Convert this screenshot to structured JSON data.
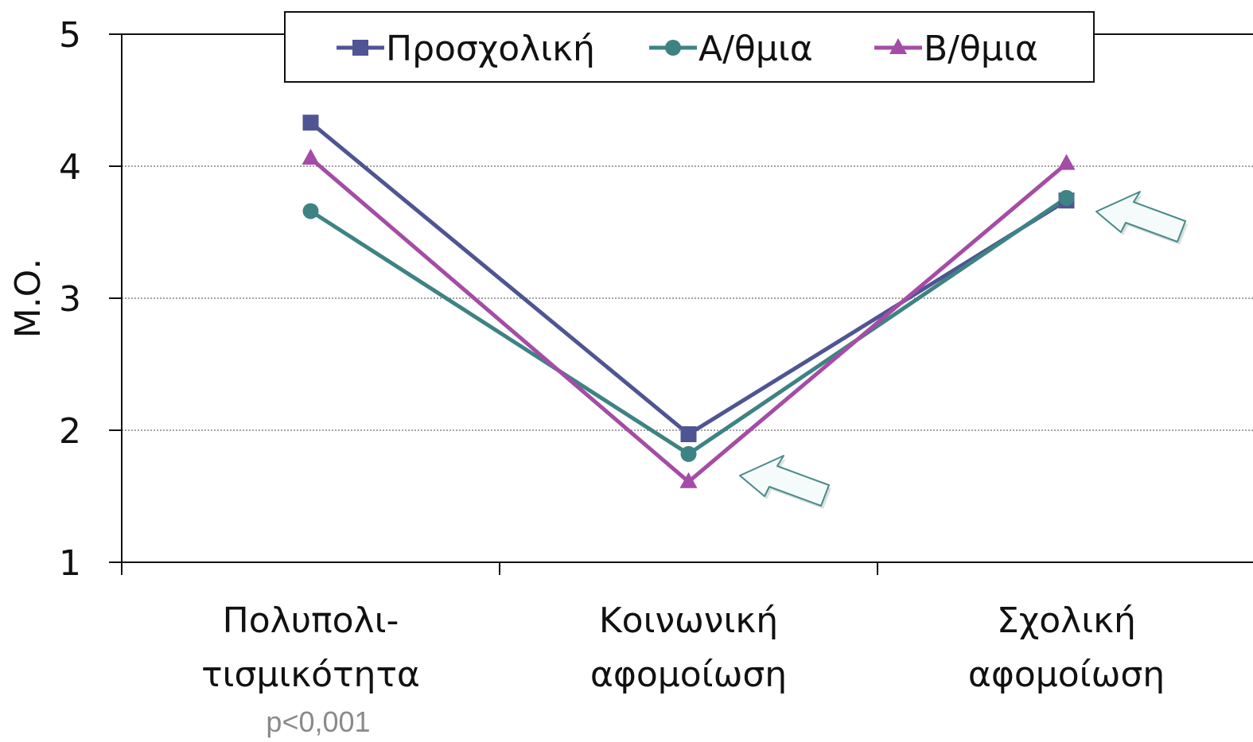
{
  "chart_data": {
    "type": "line",
    "title": "",
    "xlabel": "",
    "ylabel": "Μ.Ο.",
    "ylim": [
      1,
      5
    ],
    "yticks": [
      "1",
      "2",
      "3",
      "4",
      "5"
    ],
    "categories": [
      [
        "Πολυπολι-",
        "τισμικότητα"
      ],
      [
        "Κοινωνική",
        "αφομοίωση"
      ],
      [
        "Σχολική",
        "αφομοίωση"
      ]
    ],
    "series": [
      {
        "name": "Προσχολική",
        "values": [
          4.33,
          1.97,
          3.74
        ],
        "color": "#4f5592",
        "marker": "square"
      },
      {
        "name": "Α/θμια",
        "values": [
          3.66,
          1.82,
          3.76
        ],
        "color": "#3e8383",
        "marker": "circle"
      },
      {
        "name": "Β/θμια",
        "values": [
          4.06,
          1.61,
          4.02
        ],
        "color": "#a44ca6",
        "marker": "triangle"
      }
    ],
    "grid": "horizontal-dotted",
    "legend": "top",
    "annotations": {
      "note": "p<0,001",
      "arrows": [
        "Κοινωνική αφομοίωση",
        "Σχολική αφομοίωση"
      ],
      "arrow_color": "#4a8b89"
    }
  }
}
